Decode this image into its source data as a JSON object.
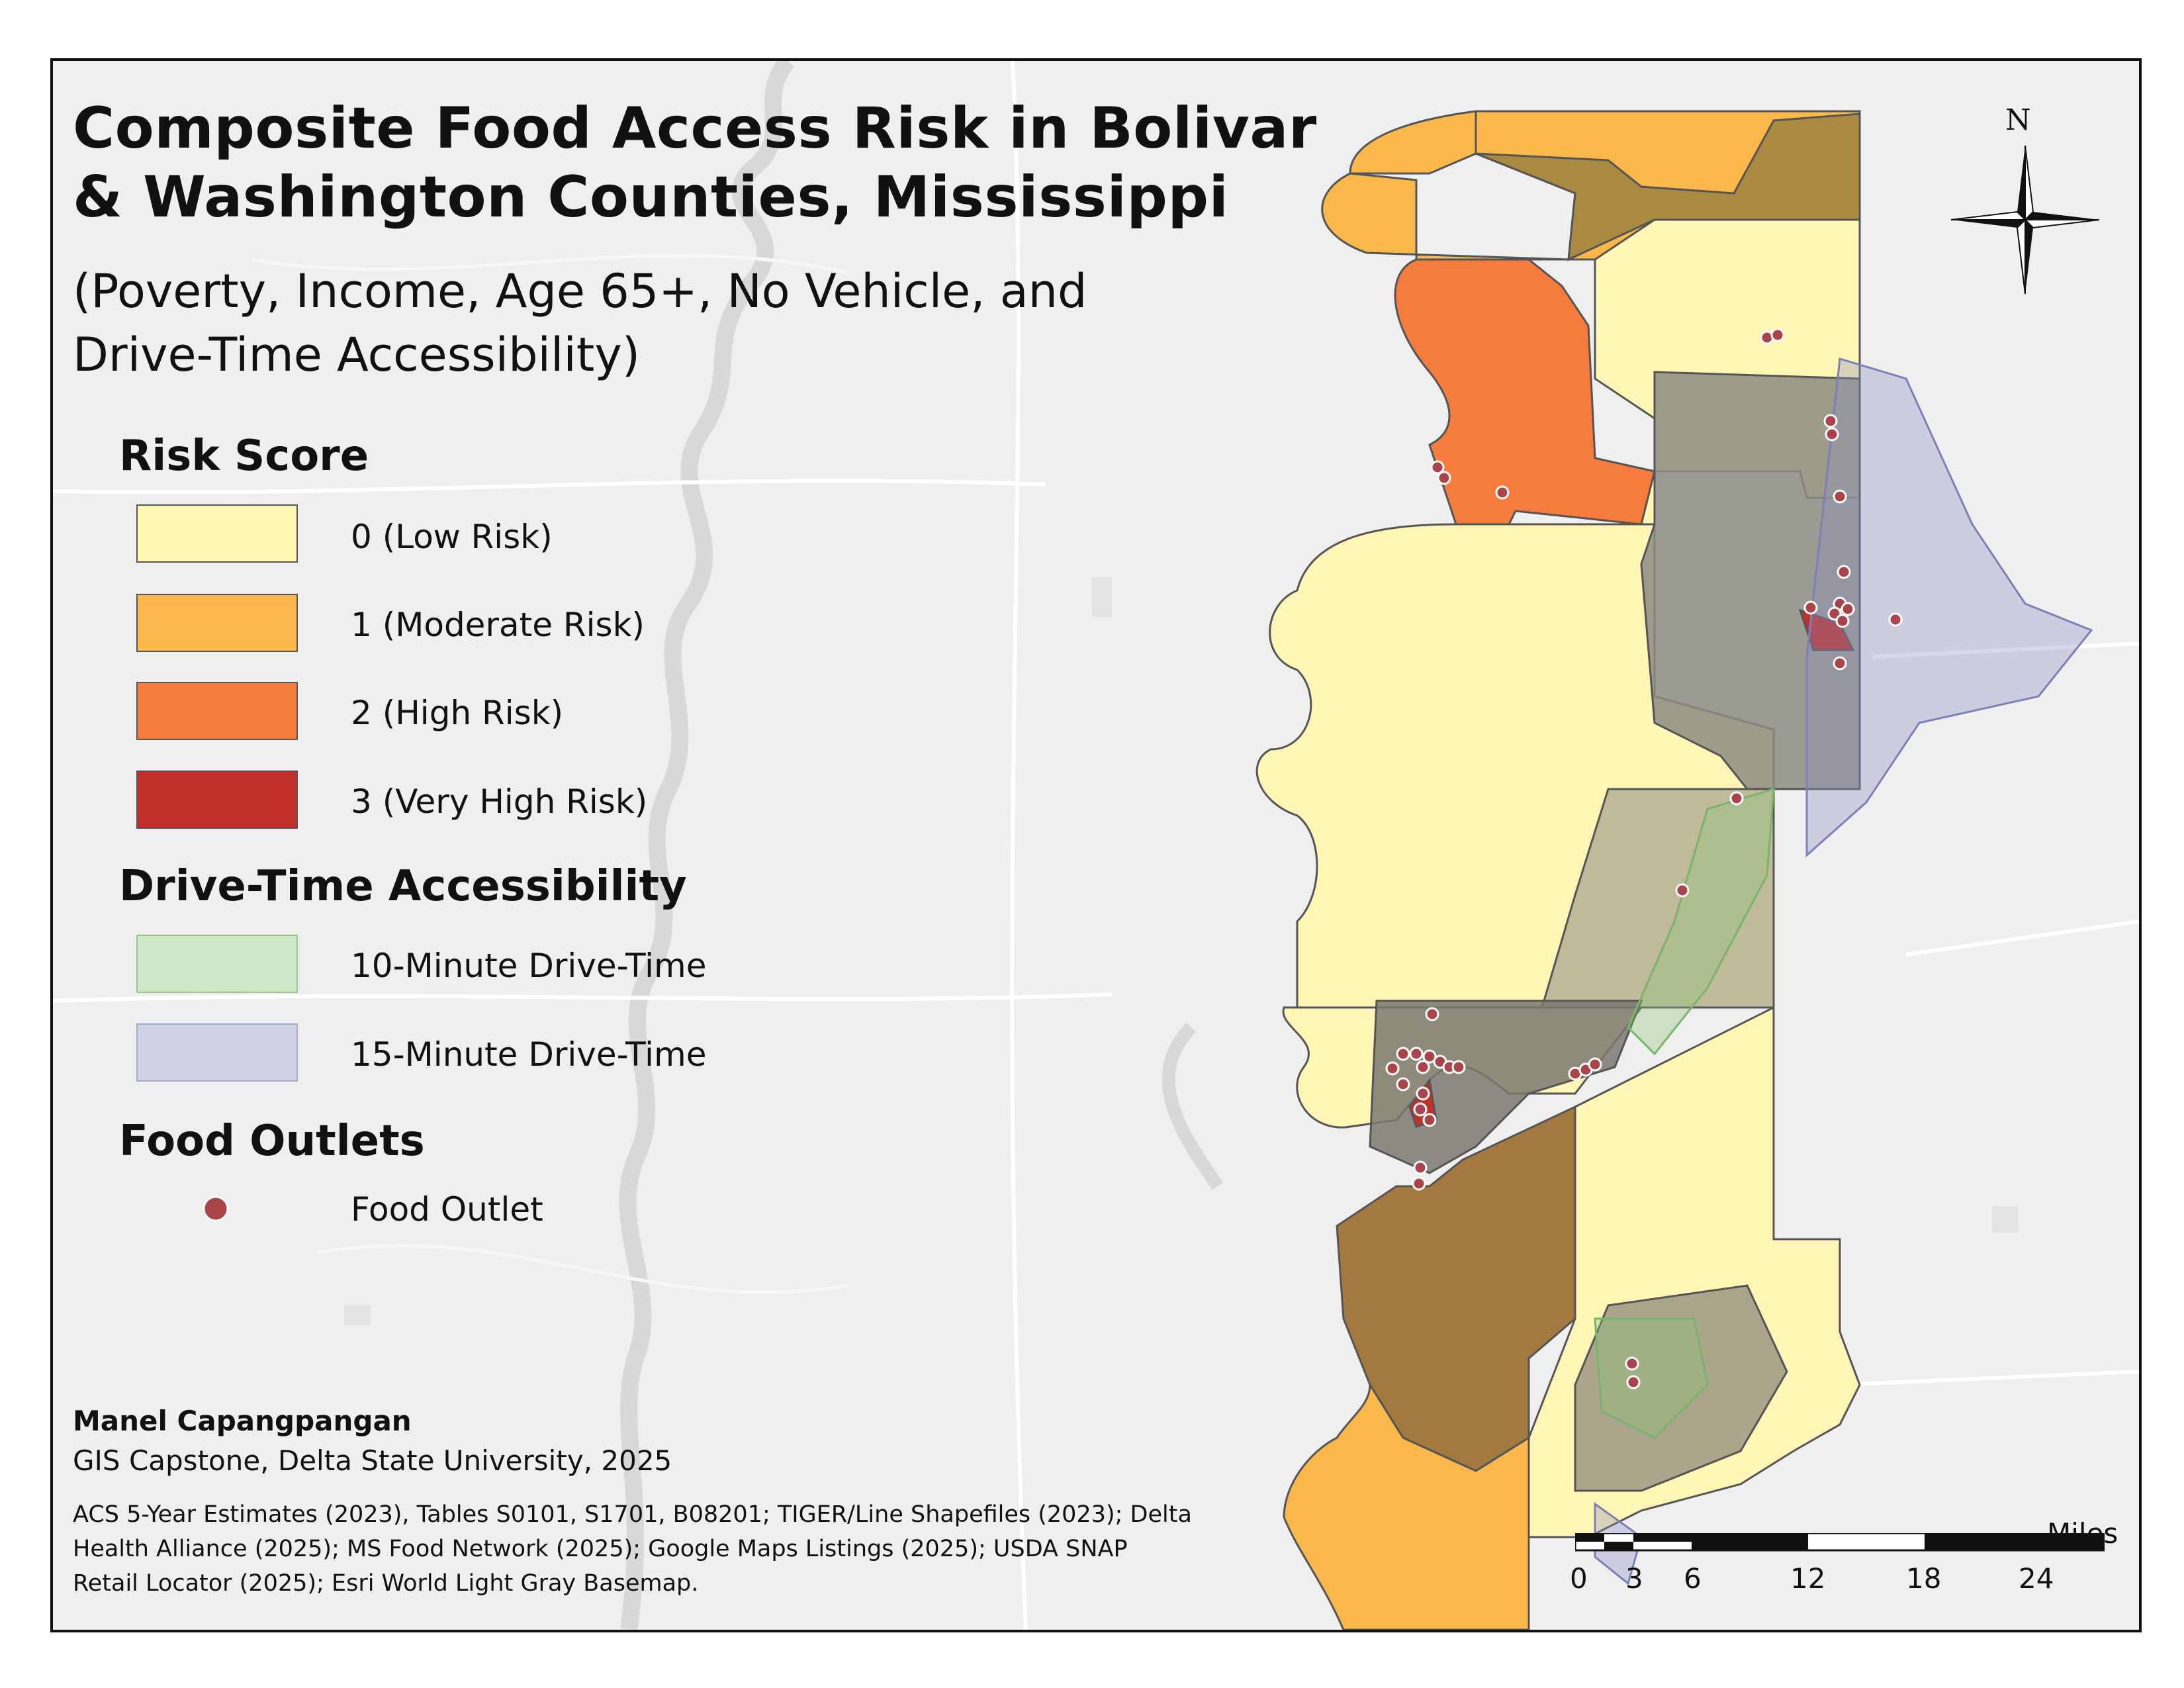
{
  "title": {
    "line1": "Composite Food Access Risk in Bolivar",
    "line2": "& Washington Counties, Mississippi"
  },
  "subtitle": {
    "line1": "(Poverty, Income, Age 65+, No Vehicle, and",
    "line2": "Drive-Time Accessibility)"
  },
  "legend": {
    "risk_heading": "Risk Score",
    "risk_items": [
      {
        "label": "0 (Low Risk)",
        "color": "#fff6b5"
      },
      {
        "label": "1 (Moderate Risk)",
        "color": "#fbb84a"
      },
      {
        "label": "2 (High Risk)",
        "color": "#f57c3c"
      },
      {
        "label": "3 (Very High Risk)",
        "color": "#c0312a"
      }
    ],
    "drive_heading": "Drive-Time Accessibility",
    "drive_items": [
      {
        "label": "10-Minute Drive-Time",
        "color": "#cfe6c8"
      },
      {
        "label": "15-Minute Drive-Time",
        "color": "#cfd1e6"
      }
    ],
    "outlet_heading": "Food Outlets",
    "outlet_item": {
      "label": "Food Outlet",
      "color": "#a9444b"
    }
  },
  "credits": {
    "author": "Manel Capangpangan",
    "affiliation": "GIS Capstone, Delta State University, 2025",
    "sources": "ACS 5-Year Estimates (2023), Tables S0101, S1701, B08201; TIGER/Line Shapefiles (2023); Delta Health Alliance (2025); MS Food Network (2025); Google Maps Listings (2025); USDA SNAP Retail Locator (2025); Esri World Light Gray Basemap."
  },
  "scale_bar": {
    "unit": "Miles",
    "ticks": [
      "0",
      "3",
      "6",
      "12",
      "18",
      "24"
    ]
  },
  "north_arrow": {
    "label": "N",
    "icon": "compass-rose-icon"
  },
  "colors": {
    "map_background": "#efefef",
    "drive_10_tint": "#8fc77a",
    "drive_15_tint": "#8c8fc2",
    "outlet_marker": "#a9444b"
  }
}
